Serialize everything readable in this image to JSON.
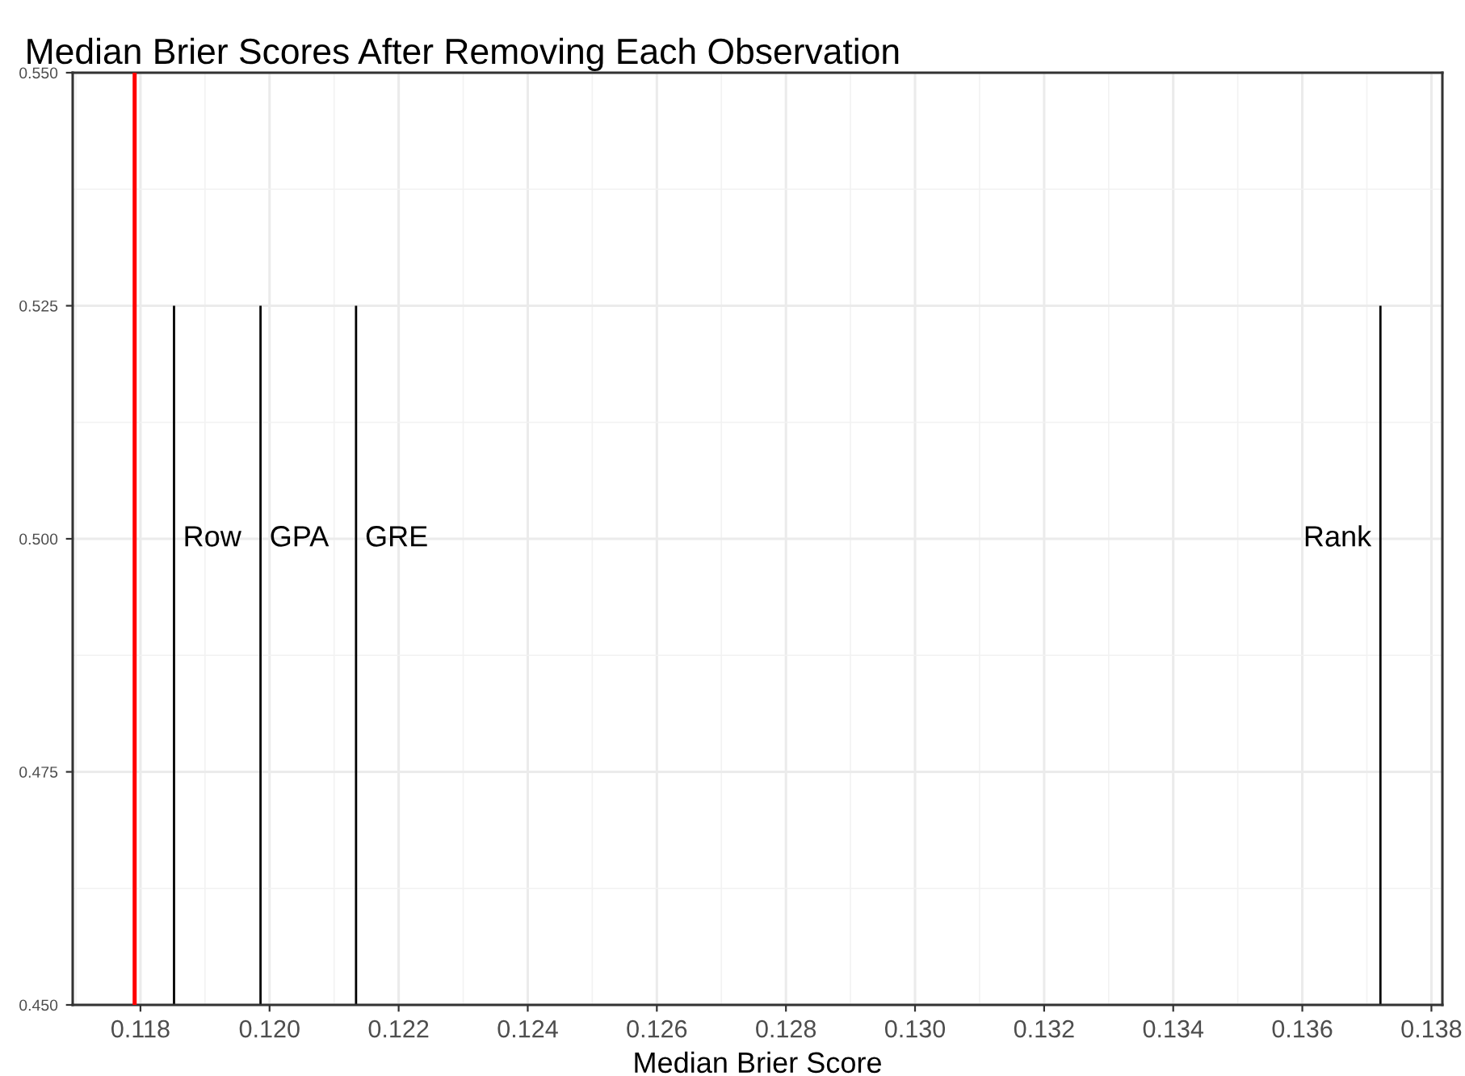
{
  "chart_data": {
    "type": "line",
    "title": "Median Brier Scores After Removing Each Observation",
    "xlabel": "Median Brier Score",
    "series": [
      {
        "color": "#000000",
        "x": [
          0.11852,
          0.11852
        ],
        "values": [
          0.45,
          0.525
        ]
      },
      {
        "color": "#000000",
        "x": [
          0.11986,
          0.11986
        ],
        "values": [
          0.45,
          0.525
        ]
      },
      {
        "color": "#000000",
        "x": [
          0.12134,
          0.12134
        ],
        "values": [
          0.45,
          0.525
        ]
      },
      {
        "color": "#000000",
        "x": [
          0.13721,
          0.13721
        ],
        "values": [
          0.45,
          0.525
        ]
      }
    ],
    "annotations": [
      {
        "text": "Row",
        "x": 0.11852,
        "y": 0.5
      },
      {
        "text": "GPA",
        "x": 0.11986,
        "y": 0.5
      },
      {
        "text": "GRE",
        "x": 0.12134,
        "y": 0.5
      },
      {
        "text": "Rank",
        "x": 0.13721,
        "y": 0.5
      }
    ],
    "ref_lines": [
      {
        "axis": "x",
        "value": 0.11791,
        "color": "#ff0000"
      }
    ],
    "xlim": [
      0.11695,
      0.13817
    ],
    "ylim": [
      0.45,
      0.55
    ],
    "xticks": [
      {
        "value": 0.118,
        "label": "0.118"
      },
      {
        "value": 0.12,
        "label": "0.120"
      },
      {
        "value": 0.122,
        "label": "0.122"
      },
      {
        "value": 0.124,
        "label": "0.124"
      },
      {
        "value": 0.126,
        "label": "0.126"
      },
      {
        "value": 0.128,
        "label": "0.128"
      },
      {
        "value": 0.13,
        "label": "0.130"
      },
      {
        "value": 0.132,
        "label": "0.132"
      },
      {
        "value": 0.134,
        "label": "0.134"
      },
      {
        "value": 0.136,
        "label": "0.136"
      },
      {
        "value": 0.138,
        "label": "0.138"
      }
    ],
    "yticks": [
      {
        "value": 0.45,
        "label": "0.450"
      },
      {
        "value": 0.475,
        "label": "0.475"
      },
      {
        "value": 0.5,
        "label": "0.500"
      },
      {
        "value": 0.525,
        "label": "0.525"
      },
      {
        "value": 0.55,
        "label": "0.550"
      }
    ],
    "grid": true,
    "line_style": "solid"
  }
}
